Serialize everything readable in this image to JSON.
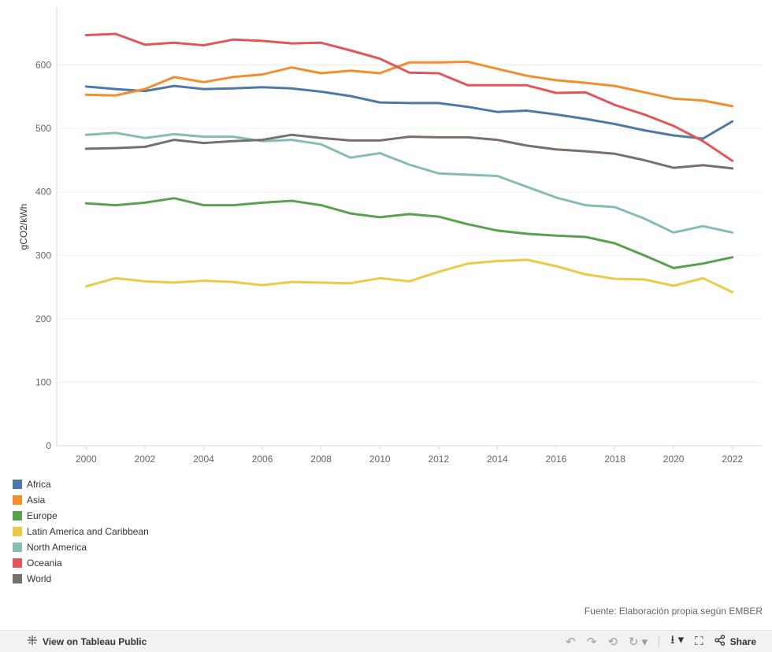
{
  "chart_data": {
    "type": "line",
    "title": "",
    "xlabel": "",
    "ylabel": "gCO2/kWh",
    "xlim": [
      1999,
      2023
    ],
    "ylim": [
      0,
      690
    ],
    "x_ticks": [
      "2000",
      "2002",
      "2004",
      "2006",
      "2008",
      "2010",
      "2012",
      "2014",
      "2016",
      "2018",
      "2020",
      "2022"
    ],
    "y_ticks": [
      "0",
      "100",
      "200",
      "300",
      "400",
      "500",
      "600"
    ],
    "x": [
      2000,
      2001,
      2002,
      2003,
      2004,
      2005,
      2006,
      2007,
      2008,
      2009,
      2010,
      2011,
      2012,
      2013,
      2014,
      2015,
      2016,
      2017,
      2018,
      2019,
      2020,
      2021,
      2022
    ],
    "series": [
      {
        "name": "Africa",
        "color": "#4e79a7",
        "values": [
          566,
          562,
          559,
          567,
          562,
          563,
          565,
          563,
          558,
          551,
          541,
          540,
          540,
          534,
          526,
          528,
          522,
          515,
          507,
          497,
          489,
          484,
          511
        ]
      },
      {
        "name": "Asia",
        "color": "#f28e2b",
        "values": [
          553,
          552,
          562,
          581,
          573,
          581,
          585,
          596,
          587,
          591,
          587,
          604,
          604,
          605,
          594,
          583,
          576,
          572,
          567,
          557,
          547,
          544,
          535
        ]
      },
      {
        "name": "Europe",
        "color": "#59a14f",
        "values": [
          382,
          379,
          383,
          390,
          379,
          379,
          383,
          386,
          379,
          366,
          360,
          365,
          361,
          349,
          339,
          334,
          331,
          329,
          319,
          300,
          280,
          287,
          297
        ]
      },
      {
        "name": "Latin America and Caribbean",
        "color": "#edc948",
        "values": [
          251,
          264,
          259,
          257,
          260,
          258,
          253,
          258,
          257,
          256,
          264,
          259,
          274,
          287,
          291,
          293,
          283,
          270,
          263,
          262,
          252,
          264,
          242
        ]
      },
      {
        "name": "North America",
        "color": "#86bcb6",
        "values": [
          490,
          493,
          485,
          491,
          487,
          487,
          480,
          482,
          475,
          454,
          461,
          443,
          429,
          427,
          425,
          408,
          391,
          379,
          376,
          358,
          336,
          346,
          336
        ]
      },
      {
        "name": "Oceania",
        "color": "#e15759",
        "values": [
          647,
          649,
          632,
          635,
          631,
          640,
          638,
          634,
          635,
          623,
          610,
          588,
          587,
          568,
          568,
          568,
          556,
          557,
          537,
          522,
          504,
          480,
          449
        ]
      },
      {
        "name": "World",
        "color": "#79706e",
        "values": [
          468,
          469,
          471,
          482,
          477,
          480,
          482,
          490,
          485,
          481,
          481,
          487,
          486,
          486,
          482,
          473,
          467,
          464,
          460,
          450,
          438,
          442,
          437
        ]
      }
    ]
  },
  "source_note": "Fuente: Elaboración propia según EMBER",
  "toolbar": {
    "view_label": "View on Tableau Public",
    "share_label": "Share"
  },
  "icons": {
    "tableau": "tableau-logo-icon",
    "undo": "undo-icon",
    "redo": "redo-icon",
    "revert": "revert-icon",
    "refresh": "refresh-icon",
    "download": "download-icon",
    "fullscreen": "fullscreen-icon",
    "share": "share-icon"
  }
}
